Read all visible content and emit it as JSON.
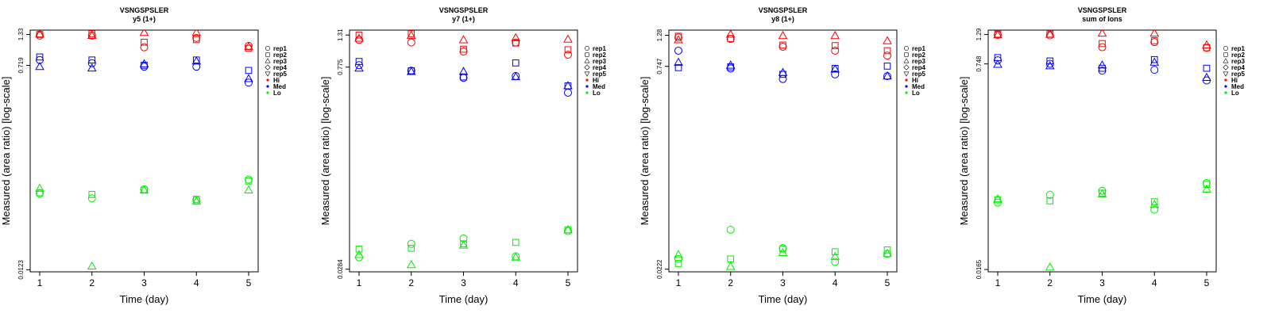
{
  "chart_data": [
    {
      "type": "scatter",
      "title": "VSNGSPSLER",
      "subtitle": "y5 (1+)",
      "xlabel": "Time (day)",
      "ylabel": "Measured (area ratio) [log-scale]",
      "x_ticks": [
        "1",
        "2",
        "3",
        "4",
        "5"
      ],
      "y_ticks": [
        {
          "value": 1.33,
          "label": "1.33"
        },
        {
          "value": 0.719,
          "label": "0.719"
        },
        {
          "value": 0.0123,
          "label": "0.0123"
        }
      ],
      "ylim": [
        0.0118,
        1.45
      ],
      "log_y": true,
      "legend": {
        "position": "right",
        "reps": [
          "rep1",
          "rep2",
          "rep3",
          "rep4",
          "rep5"
        ],
        "levels": [
          {
            "label": "Hi",
            "color": "#ff0000"
          },
          {
            "label": "Med",
            "color": "#0000ff"
          },
          {
            "label": "Lo",
            "color": "#00ee00"
          }
        ]
      },
      "points": {
        "Hi": [
          [
            1.3,
            1.33,
            1.34,
            null,
            null
          ],
          [
            1.3,
            1.35,
            1.3,
            null,
            null
          ],
          [
            1.03,
            1.14,
            1.38,
            null,
            null
          ],
          [
            1.24,
            1.2,
            1.38,
            null,
            null
          ],
          [
            1.06,
            1.01,
            1.04,
            null,
            null
          ]
        ],
        "Med": [
          [
            0.8,
            0.85,
            0.7,
            null,
            null
          ],
          [
            0.75,
            0.8,
            0.68,
            null,
            null
          ],
          [
            0.7,
            0.72,
            0.74,
            null,
            null
          ],
          [
            0.7,
            0.8,
            0.78,
            null,
            null
          ],
          [
            0.51,
            0.65,
            0.55,
            null,
            null
          ]
        ],
        "Lo": [
          [
            0.056,
            0.057,
            0.062,
            null,
            null
          ],
          [
            0.051,
            0.055,
            0.0132,
            null,
            null
          ],
          [
            0.061,
            0.06,
            0.06,
            null,
            null
          ],
          [
            0.049,
            0.05,
            0.048,
            null,
            null
          ],
          [
            0.074,
            0.072,
            0.06,
            null,
            null
          ]
        ]
      }
    },
    {
      "type": "scatter",
      "title": "VSNGSPSLER",
      "subtitle": "y7 (1+)",
      "xlabel": "Time (day)",
      "ylabel": "Measured (area ratio) [log-scale]",
      "x_ticks": [
        "1",
        "2",
        "3",
        "4",
        "5"
      ],
      "y_ticks": [
        {
          "value": 1.31,
          "label": "1.31"
        },
        {
          "value": 0.775,
          "label": "0.775"
        },
        {
          "value": 0.0284,
          "label": "0.0284"
        }
      ],
      "ylim": [
        0.0272,
        1.42
      ],
      "log_y": true,
      "legend": {
        "position": "right",
        "reps": [
          "rep1",
          "rep2",
          "rep3",
          "rep4",
          "rep5"
        ],
        "levels": [
          {
            "label": "Hi",
            "color": "#ff0000"
          },
          {
            "label": "Med",
            "color": "#0000ff"
          },
          {
            "label": "Lo",
            "color": "#00ee00"
          }
        ]
      },
      "points": {
        "Hi": [
          [
            1.21,
            1.31,
            1.24,
            null,
            null
          ],
          [
            1.16,
            1.34,
            1.3,
            null,
            null
          ],
          [
            1.0,
            1.04,
            1.21,
            null,
            null
          ],
          [
            1.16,
            1.15,
            1.25,
            null,
            null
          ],
          [
            0.95,
            1.03,
            1.22,
            null,
            null
          ]
        ],
        "Med": [
          [
            0.8,
            0.85,
            0.76,
            null,
            null
          ],
          [
            0.73,
            0.73,
            0.72,
            null,
            null
          ],
          [
            0.65,
            0.66,
            0.72,
            null,
            null
          ],
          [
            0.67,
            0.83,
            0.66,
            null,
            null
          ],
          [
            0.51,
            0.57,
            0.57,
            null,
            null
          ]
        ],
        "Lo": [
          [
            0.0345,
            0.0395,
            0.036,
            null,
            null
          ],
          [
            0.043,
            0.04,
            0.0305,
            null,
            null
          ],
          [
            0.047,
            0.043,
            0.042,
            null,
            null
          ],
          [
            0.035,
            0.044,
            0.0345,
            null,
            null
          ],
          [
            0.053,
            0.054,
            0.054,
            null,
            null
          ]
        ]
      }
    },
    {
      "type": "scatter",
      "title": "VSNGSPSLER",
      "subtitle": "y8 (1+)",
      "xlabel": "Time (day)",
      "ylabel": "Measured (area ratio) [log-scale]",
      "x_ticks": [
        "1",
        "2",
        "3",
        "4",
        "5"
      ],
      "y_ticks": [
        {
          "value": 1.28,
          "label": "1.28"
        },
        {
          "value": 0.747,
          "label": "0.747"
        },
        {
          "value": 0.0222,
          "label": "0.0222"
        }
      ],
      "ylim": [
        0.0212,
        1.4
      ],
      "log_y": true,
      "legend": {
        "position": "right",
        "reps": [
          "rep1",
          "rep2",
          "rep3",
          "rep4",
          "rep5"
        ],
        "levels": [
          {
            "label": "Hi",
            "color": "#ff0000"
          },
          {
            "label": "Med",
            "color": "#0000ff"
          },
          {
            "label": "Lo",
            "color": "#00ee00"
          }
        ]
      },
      "points": {
        "Hi": [
          [
            1.23,
            1.26,
            1.18,
            null,
            null
          ],
          [
            1.2,
            1.21,
            1.3,
            null,
            null
          ],
          [
            1.05,
            1.08,
            1.27,
            null,
            null
          ],
          [
            0.98,
            1.07,
            1.27,
            null,
            null
          ],
          [
            0.9,
            0.98,
            1.16,
            null,
            null
          ]
        ],
        "Med": [
          [
            0.98,
            0.73,
            0.8,
            null,
            null
          ],
          [
            0.72,
            0.74,
            0.76,
            null,
            null
          ],
          [
            0.6,
            0.65,
            0.67,
            null,
            null
          ],
          [
            0.65,
            0.72,
            0.71,
            null,
            null
          ],
          [
            0.63,
            0.75,
            0.63,
            null,
            null
          ]
        ],
        "Lo": [
          [
            0.0265,
            0.0245,
            0.0285,
            null,
            null
          ],
          [
            0.044,
            0.0265,
            0.0232,
            null,
            null
          ],
          [
            0.032,
            0.0315,
            0.0295,
            null,
            null
          ],
          [
            0.0252,
            0.03,
            0.0276,
            null,
            null
          ],
          [
            0.029,
            0.031,
            0.029,
            null,
            null
          ]
        ]
      }
    },
    {
      "type": "scatter",
      "title": "VSNGSPSLER",
      "subtitle": "sum of Ions",
      "xlabel": "Time (day)",
      "ylabel": "Measured (area ratio) [log-scale]",
      "x_ticks": [
        "1",
        "2",
        "3",
        "4",
        "5"
      ],
      "y_ticks": [
        {
          "value": 1.29,
          "label": "1.29"
        },
        {
          "value": 0.748,
          "label": "0.748"
        },
        {
          "value": 0.0165,
          "label": "0.0165"
        }
      ],
      "ylim": [
        0.0158,
        1.4
      ],
      "log_y": true,
      "legend": {
        "position": "right",
        "reps": [
          "rep1",
          "rep2",
          "rep3",
          "rep4",
          "rep5"
        ],
        "levels": [
          {
            "label": "Hi",
            "color": "#ff0000"
          },
          {
            "label": "Med",
            "color": "#0000ff"
          },
          {
            "label": "Lo",
            "color": "#00ee00"
          }
        ]
      },
      "points": {
        "Hi": [
          [
            1.28,
            1.3,
            1.28,
            null,
            null
          ],
          [
            1.27,
            1.3,
            1.29,
            null,
            null
          ],
          [
            1.02,
            1.09,
            1.32,
            null,
            null
          ],
          [
            1.12,
            1.15,
            1.32,
            null,
            null
          ],
          [
            1.01,
            1.01,
            1.06,
            null,
            null
          ]
        ],
        "Med": [
          [
            0.8,
            0.84,
            0.74,
            null,
            null
          ],
          [
            0.75,
            0.79,
            0.72,
            null,
            null
          ],
          [
            0.66,
            0.69,
            0.73,
            null,
            null
          ],
          [
            0.67,
            0.81,
            0.77,
            null,
            null
          ],
          [
            0.55,
            0.69,
            0.58,
            null,
            null
          ]
        ],
        "Lo": [
          [
            0.057,
            0.06,
            0.061,
            null,
            null
          ],
          [
            0.066,
            0.059,
            0.0172,
            null,
            null
          ],
          [
            0.071,
            0.068,
            0.067,
            null,
            null
          ],
          [
            0.05,
            0.058,
            0.055,
            null,
            null
          ],
          [
            0.082,
            0.08,
            0.073,
            null,
            null
          ]
        ]
      }
    }
  ]
}
